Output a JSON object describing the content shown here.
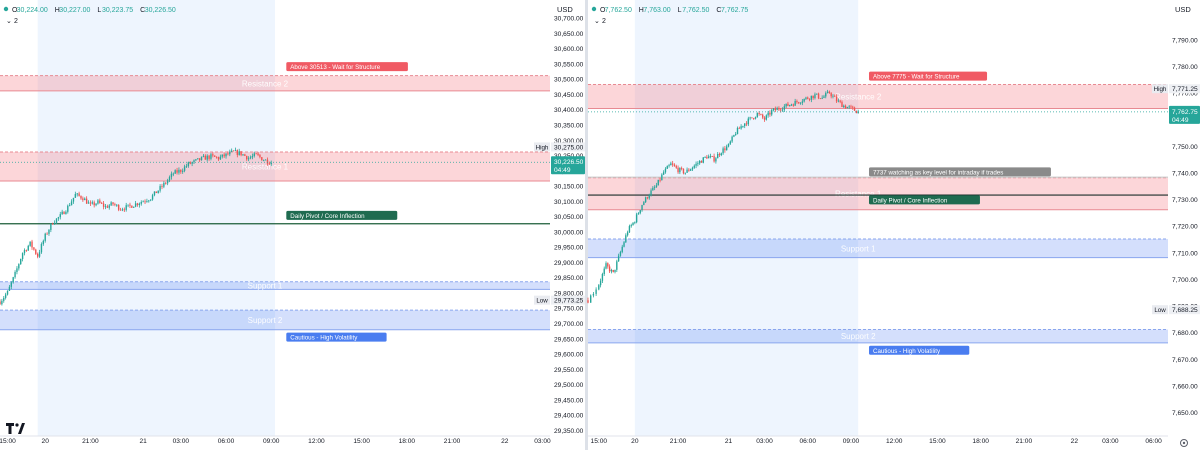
{
  "charts": [
    {
      "ohlc": {
        "o_label": "O",
        "o": "30,224.00",
        "h_label": "H",
        "h": "30,227.00",
        "l_label": "L",
        "l": "30,223.75",
        "c_label": "C",
        "c": "30,226.50"
      },
      "layer_count": "2",
      "currency": "USD",
      "price_axis": {
        "min": 29330,
        "max": 30725,
        "ticks": [
          "30,700.00",
          "30,650.00",
          "30,600.00",
          "30,550.00",
          "30,500.00",
          "30,450.00",
          "30,400.00",
          "30,350.00",
          "30,300.00",
          "30,250.00",
          "30,200.00",
          "30,150.00",
          "30,100.00",
          "30,050.00",
          "30,000.00",
          "29,950.00",
          "29,900.00",
          "29,850.00",
          "29,800.00",
          "29,750.00",
          "29,700.00",
          "29,650.00",
          "29,600.00",
          "29,550.00",
          "29,500.00",
          "29,450.00",
          "29,400.00",
          "29,350.00"
        ],
        "tick_values": [
          30700,
          30650,
          30600,
          30550,
          30500,
          30450,
          30400,
          30350,
          30300,
          30250,
          30200,
          30150,
          30100,
          30050,
          30000,
          29950,
          29900,
          29850,
          29800,
          29750,
          29700,
          29650,
          29600,
          29550,
          29500,
          29450,
          29400,
          29350
        ]
      },
      "time_axis": {
        "ticks": [
          "15:00",
          "20",
          "21:00",
          "21",
          "03:00",
          "06:00",
          "09:00",
          "12:00",
          "15:00",
          "18:00",
          "21:00",
          "22",
          "03:00"
        ],
        "tick_hours": [
          0,
          5,
          11,
          18,
          23,
          29,
          35,
          41,
          47,
          53,
          59,
          66,
          71
        ],
        "start": -1,
        "end": 72
      },
      "session": {
        "from": 4,
        "to": 35.5,
        "color": "#eef5fe"
      },
      "zones": [
        {
          "name": "Resistance 2",
          "from": 30460,
          "to": 30510,
          "type": "resistance"
        },
        {
          "name": "Resistance 1",
          "from": 30165,
          "to": 30260,
          "type": "resistance"
        },
        {
          "name": "Support 1",
          "from": 29810,
          "to": 29835,
          "type": "support"
        },
        {
          "name": "Support 2",
          "from": 29678,
          "to": 29742,
          "type": "support"
        }
      ],
      "lines": [
        {
          "price": 30025,
          "color": "#1b5e3a",
          "label": "Daily Pivot / Core Inflection"
        }
      ],
      "annotations": [
        {
          "text": "Above 30513 - Wait for Structure",
          "price": 30538,
          "hour": 37,
          "color": "#f05a64"
        },
        {
          "text": "Daily Pivot / Core Inflection",
          "price": 30051,
          "hour": 37,
          "color": "#1f6b50"
        },
        {
          "text": "Cautious - High Volatility",
          "price": 29652,
          "hour": 37,
          "color": "#4a7df0"
        }
      ],
      "markers": [
        {
          "label": "High",
          "price": 30275,
          "value": "30,275.00"
        },
        {
          "label": "Low",
          "price": 29773.25,
          "value": "29,773.25"
        }
      ],
      "last_price": {
        "price": 30226.5,
        "value": "30,226.50",
        "countdown": "04:49"
      },
      "path": [
        [
          -1,
          29770
        ],
        [
          0,
          29800
        ],
        [
          1,
          29860
        ],
        [
          2,
          29930
        ],
        [
          3,
          29960
        ],
        [
          4,
          29920
        ],
        [
          5,
          29985
        ],
        [
          6,
          30030
        ],
        [
          7,
          30050
        ],
        [
          8,
          30080
        ],
        [
          9,
          30120
        ],
        [
          10,
          30110
        ],
        [
          11,
          30085
        ],
        [
          12,
          30095
        ],
        [
          13,
          30080
        ],
        [
          14,
          30090
        ],
        [
          15,
          30075
        ],
        [
          16,
          30080
        ],
        [
          17,
          30090
        ],
        [
          18,
          30100
        ],
        [
          19,
          30110
        ],
        [
          20,
          30135
        ],
        [
          21,
          30160
        ],
        [
          22,
          30190
        ],
        [
          23,
          30200
        ],
        [
          24,
          30220
        ],
        [
          25,
          30230
        ],
        [
          26,
          30240
        ],
        [
          27,
          30245
        ],
        [
          28,
          30240
        ],
        [
          29,
          30250
        ],
        [
          30,
          30260
        ],
        [
          31,
          30255
        ],
        [
          32,
          30240
        ],
        [
          33,
          30250
        ],
        [
          34,
          30235
        ],
        [
          35,
          30226
        ]
      ]
    },
    {
      "ohlc": {
        "o_label": "O",
        "o": "7,762.50",
        "h_label": "H",
        "h": "7,763.00",
        "l_label": "L",
        "l": "7,762.50",
        "c_label": "C",
        "c": "7,762.75"
      },
      "layer_count": "2",
      "currency": "USD",
      "price_axis": {
        "min": 7641,
        "max": 7801,
        "ticks": [
          "7,790.00",
          "7,780.00",
          "7,770.00",
          "7,760.00",
          "7,750.00",
          "7,740.00",
          "7,730.00",
          "7,720.00",
          "7,710.00",
          "7,700.00",
          "7,690.00",
          "7,680.00",
          "7,670.00",
          "7,660.00",
          "7,650.00"
        ],
        "tick_values": [
          7790,
          7780,
          7770,
          7760,
          7750,
          7740,
          7730,
          7720,
          7710,
          7700,
          7690,
          7680,
          7670,
          7660,
          7650
        ]
      },
      "time_axis": {
        "ticks": [
          "15:00",
          "20",
          "21:00",
          "21",
          "03:00",
          "06:00",
          "09:00",
          "12:00",
          "15:00",
          "18:00",
          "21:00",
          "22",
          "03:00",
          "06:00"
        ],
        "tick_hours": [
          0,
          5,
          11,
          18,
          23,
          29,
          35,
          41,
          47,
          53,
          59,
          66,
          71,
          77
        ],
        "start": -1.5,
        "end": 79
      },
      "session": {
        "from": 5,
        "to": 36,
        "color": "#eef5fe"
      },
      "zones": [
        {
          "name": "Resistance 2",
          "from": 7764,
          "to": 7773,
          "type": "resistance"
        },
        {
          "name": "Resistance 1",
          "from": 7726,
          "to": 7738,
          "type": "resistance"
        },
        {
          "name": "Support 1",
          "from": 7708,
          "to": 7715,
          "type": "support"
        },
        {
          "name": "Support 2",
          "from": 7676,
          "to": 7681,
          "type": "support"
        }
      ],
      "lines": [
        {
          "price": 7731.5,
          "color": "#1b2f2a",
          "label": ""
        },
        {
          "price": 7738.2,
          "color": "#c8c8c8",
          "label": ""
        }
      ],
      "annotations": [
        {
          "text": "Above 7775 - Wait for Structure",
          "price": 7776,
          "hour": 37.5,
          "color": "#f05a64"
        },
        {
          "text": "7737 watching as key level for intraday if trades",
          "price": 7740,
          "hour": 37.5,
          "color": "#8a8a8a"
        },
        {
          "text": "Daily Pivot / Core Inflection",
          "price": 7729.5,
          "hour": 37.5,
          "color": "#1f6b50"
        },
        {
          "text": "Cautious - High Volatility",
          "price": 7673,
          "hour": 37.5,
          "color": "#4a7df0"
        }
      ],
      "markers": [
        {
          "label": "High",
          "price": 7771.25,
          "value": "7,771.25"
        },
        {
          "label": "Low",
          "price": 7688.25,
          "value": "7,688.25"
        }
      ],
      "last_price": {
        "price": 7762.75,
        "value": "7,762.75",
        "countdown": "04:49"
      },
      "path": [
        [
          -1.5,
          7692
        ],
        [
          0,
          7698
        ],
        [
          1,
          7705
        ],
        [
          2,
          7702
        ],
        [
          3,
          7710
        ],
        [
          4,
          7718
        ],
        [
          5,
          7722
        ],
        [
          6,
          7728
        ],
        [
          7,
          7732
        ],
        [
          8,
          7735
        ],
        [
          9,
          7740
        ],
        [
          10,
          7743
        ],
        [
          11,
          7741
        ],
        [
          12,
          7740
        ],
        [
          13,
          7742
        ],
        [
          14,
          7744
        ],
        [
          15,
          7746
        ],
        [
          16,
          7745
        ],
        [
          17,
          7748
        ],
        [
          18,
          7750
        ],
        [
          19,
          7755
        ],
        [
          20,
          7758
        ],
        [
          21,
          7760
        ],
        [
          22,
          7762
        ],
        [
          23,
          7760
        ],
        [
          24,
          7763
        ],
        [
          25,
          7764
        ],
        [
          26,
          7765
        ],
        [
          27,
          7766
        ],
        [
          28,
          7767
        ],
        [
          29,
          7768
        ],
        [
          30,
          7769
        ],
        [
          31,
          7768
        ],
        [
          32,
          7770
        ],
        [
          33,
          7767
        ],
        [
          34,
          7765
        ],
        [
          35,
          7764
        ],
        [
          36,
          7762.75
        ]
      ]
    }
  ]
}
